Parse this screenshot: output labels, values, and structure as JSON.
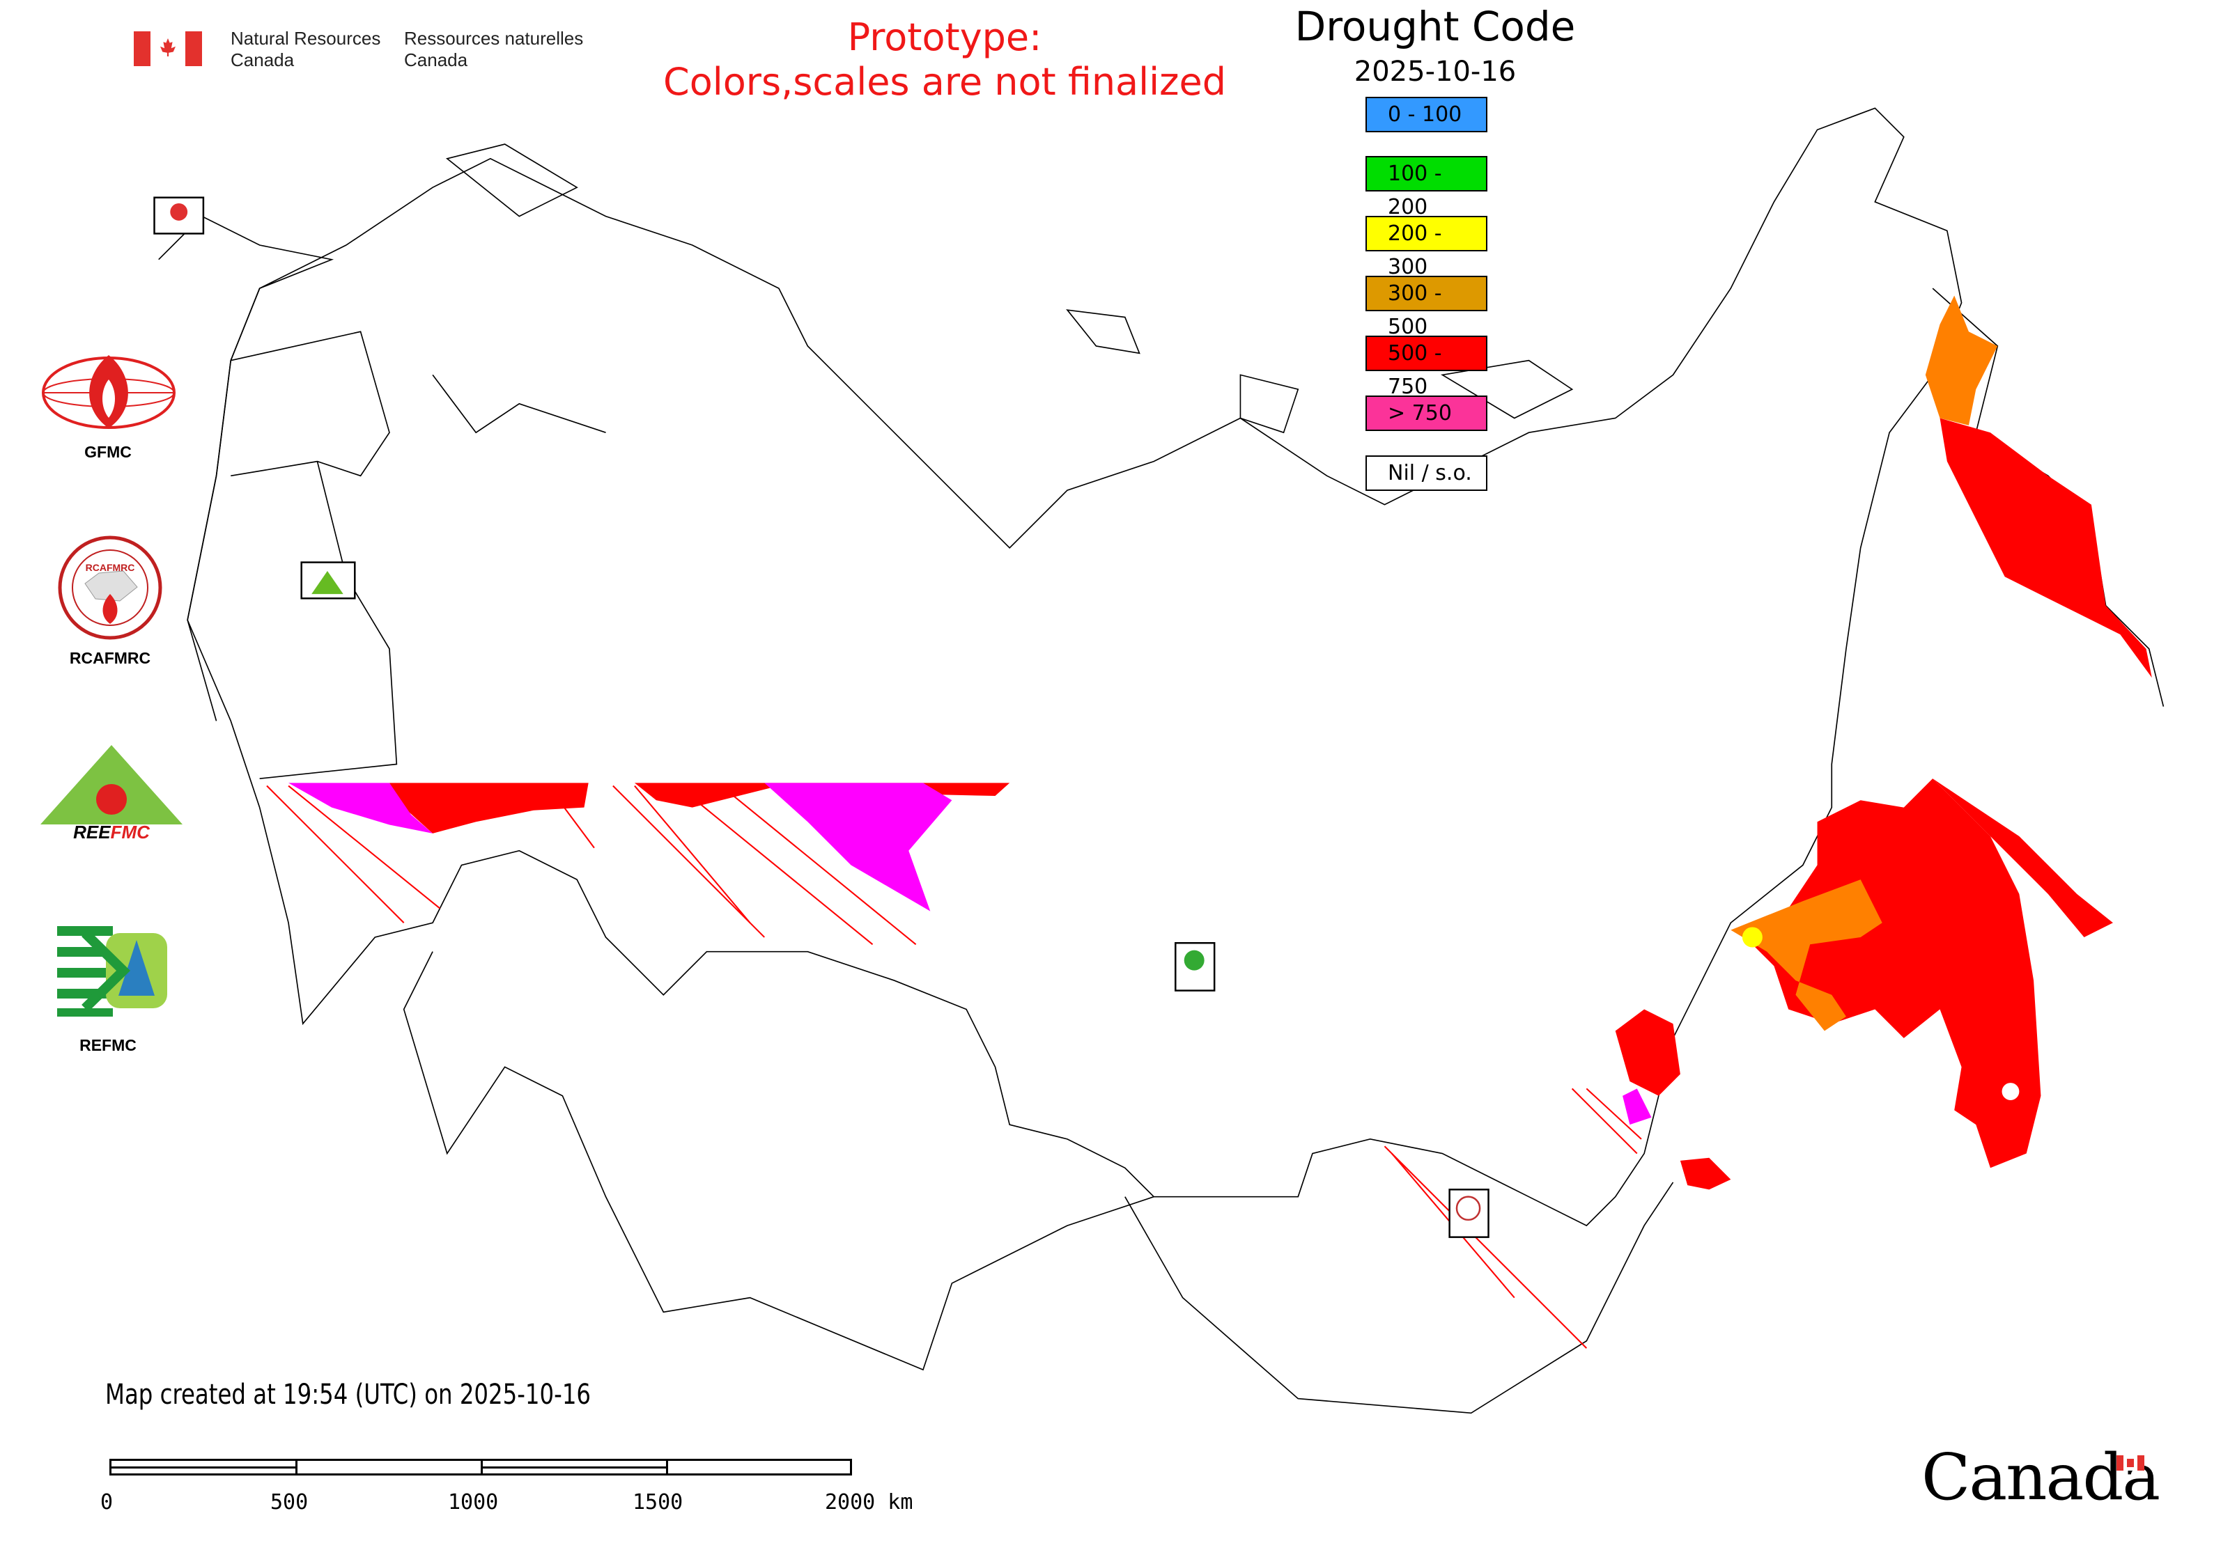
{
  "header": {
    "agency_en": [
      "Natural Resources",
      "Canada"
    ],
    "agency_fr": [
      "Ressources naturelles",
      "Canada"
    ],
    "prototype_notice": [
      "Prototype:",
      "Colors,scales are not finalized"
    ]
  },
  "legend": {
    "title": "Drought Code",
    "date": "2025-10-16",
    "items": [
      {
        "label": "0 - 100",
        "color": "#3399ff"
      },
      {
        "label": "100 - 200",
        "color": "#00dd00"
      },
      {
        "label": "200 - 300",
        "color": "#ffff00"
      },
      {
        "label": "300 - 500",
        "color": "#dd9900"
      },
      {
        "label": "500 - 750",
        "color": "#ff0000"
      },
      {
        "label": "> 750",
        "color": "#fb3399"
      },
      {
        "label": "Nil / s.o.",
        "color": "#ffffff"
      }
    ]
  },
  "logos": [
    {
      "name": "GFMC",
      "label": "GFMC"
    },
    {
      "name": "RCAFMRC",
      "label": "RCAFMRC"
    },
    {
      "name": "REEFMC",
      "label": "REEFMC"
    },
    {
      "name": "REFMC",
      "label": "REFMC"
    }
  ],
  "footer": {
    "created": "Map created at 19:54 (UTC) on 2025-10-16",
    "scale_labels": [
      "0",
      "500",
      "1000",
      "1500",
      "2000 km"
    ],
    "wordmark": "Canada"
  },
  "colors": {
    "dc_500_750": "#ff0000",
    "dc_300_500": "#ff8000",
    "dc_200_300": "#ffff00",
    "dc_gt_750": "#ff00ff",
    "outline": "#000000"
  }
}
